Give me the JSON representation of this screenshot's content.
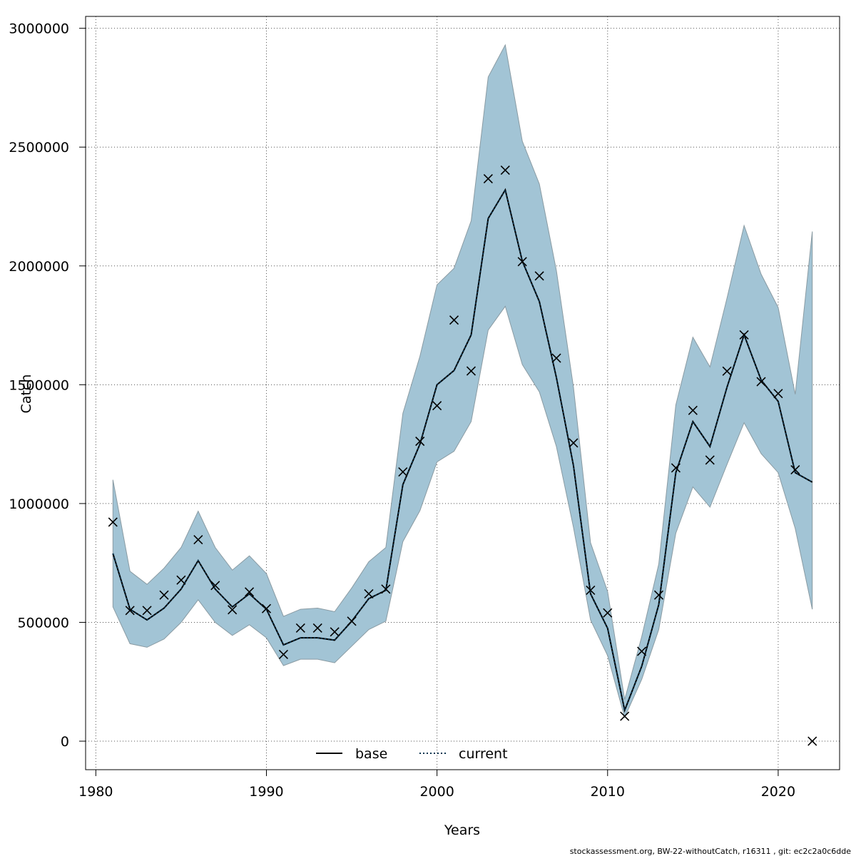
{
  "chart_data": {
    "type": "line",
    "xlabel": "Years",
    "ylabel": "Catch",
    "xlim": [
      1979.4,
      2023.6
    ],
    "ylim": [
      -120000,
      3050000
    ],
    "xticks": [
      "1980",
      "1990",
      "2000",
      "2010",
      "2020"
    ],
    "yticks": [
      "0",
      "500000",
      "1000000",
      "1500000",
      "2000000",
      "2500000",
      "3000000"
    ],
    "grid": true,
    "legend_position": "bottom-center",
    "colors": {
      "band": "#a2c4d5",
      "band_edge": "#8a9ba3",
      "base": "#000000",
      "current": "#0b3550",
      "observed": "#000000",
      "grid": "#555555"
    },
    "x": [
      1981,
      1982,
      1983,
      1984,
      1985,
      1986,
      1987,
      1988,
      1989,
      1990,
      1991,
      1992,
      1993,
      1994,
      1995,
      1996,
      1997,
      1998,
      1999,
      2000,
      2001,
      2002,
      2003,
      2004,
      2005,
      2006,
      2007,
      2008,
      2009,
      2010,
      2011,
      2012,
      2013,
      2014,
      2015,
      2016,
      2017,
      2018,
      2019,
      2020,
      2021,
      2022
    ],
    "series": [
      {
        "name": "base",
        "style": "solid",
        "values": [
          790000,
          555000,
          510000,
          560000,
          640000,
          760000,
          640000,
          565000,
          620000,
          555000,
          405000,
          435000,
          435000,
          425000,
          505000,
          600000,
          635000,
          1080000,
          1250000,
          1500000,
          1560000,
          1710000,
          2200000,
          2320000,
          2020000,
          1850000,
          1530000,
          1160000,
          620000,
          475000,
          130000,
          315000,
          575000,
          1130000,
          1345000,
          1240000,
          1490000,
          1710000,
          1520000,
          1430000,
          1130000,
          1090000
        ]
      },
      {
        "name": "current",
        "style": "dotted",
        "values": [
          790000,
          555000,
          510000,
          560000,
          640000,
          760000,
          640000,
          565000,
          620000,
          555000,
          405000,
          435000,
          435000,
          425000,
          505000,
          600000,
          635000,
          1080000,
          1250000,
          1500000,
          1560000,
          1710000,
          2200000,
          2320000,
          2020000,
          1850000,
          1530000,
          1160000,
          620000,
          475000,
          130000,
          315000,
          575000,
          1130000,
          1345000,
          1240000,
          1490000,
          1710000,
          1520000,
          1430000,
          1130000,
          1090000
        ]
      }
    ],
    "band": {
      "lower": [
        565000,
        410000,
        395000,
        430000,
        500000,
        595000,
        500000,
        445000,
        490000,
        435000,
        318000,
        345000,
        345000,
        330000,
        400000,
        470000,
        505000,
        840000,
        970000,
        1175000,
        1220000,
        1345000,
        1730000,
        1830000,
        1585000,
        1470000,
        1240000,
        900000,
        510000,
        360000,
        100000,
        260000,
        470000,
        875000,
        1070000,
        985000,
        1165000,
        1340000,
        1210000,
        1130000,
        895000,
        555000
      ],
      "upper": [
        1100000,
        715000,
        660000,
        728000,
        815000,
        968000,
        815000,
        720000,
        780000,
        705000,
        525000,
        555000,
        560000,
        545000,
        645000,
        755000,
        815000,
        1380000,
        1620000,
        1920000,
        1990000,
        2190000,
        2795000,
        2930000,
        2525000,
        2345000,
        1980000,
        1490000,
        835000,
        630000,
        175000,
        440000,
        745000,
        1415000,
        1700000,
        1575000,
        1865000,
        2170000,
        1965000,
        1825000,
        1460000,
        2145000
      ]
    },
    "observed": {
      "marker": "x",
      "values": [
        922000,
        550000,
        550000,
        615000,
        678000,
        848000,
        655000,
        553000,
        628000,
        558000,
        365000,
        476000,
        476000,
        460000,
        505000,
        620000,
        640000,
        1133000,
        1262000,
        1412000,
        1772000,
        1558000,
        2367000,
        2403000,
        2018000,
        1958000,
        1612000,
        1255000,
        635000,
        540000,
        105000,
        378000,
        615000,
        1150000,
        1392000,
        1183000,
        1557000,
        1710000,
        1513000,
        1463000,
        1142000,
        0
      ]
    }
  },
  "footer": {
    "note": "stockassessment.org, BW-22-withoutCatch, r16311 , git: ec2c2a0c6dde"
  }
}
